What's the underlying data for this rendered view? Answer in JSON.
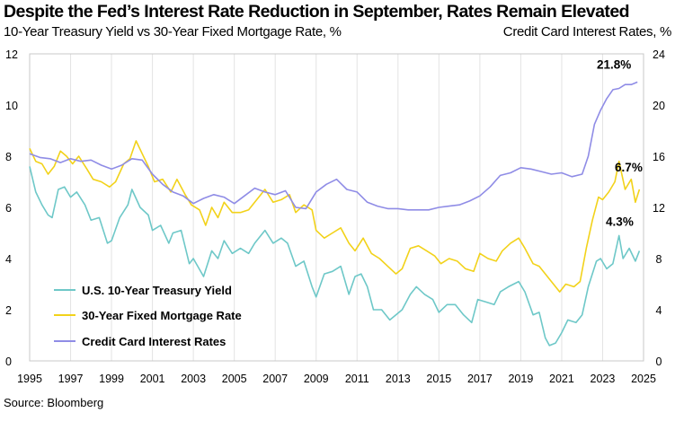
{
  "header": {
    "title": "Despite the Fed’s Interest Rate Reduction in September, Rates Remain Elevated",
    "subtitle_left": "10-Year Treasury Yield vs 30-Year Fixed Mortgage Rate, %",
    "subtitle_right": "Credit Card Interest Rates, %"
  },
  "footer": {
    "source": "Source: Bloomberg"
  },
  "chart_data": {
    "type": "line",
    "xlim": [
      1995,
      2025
    ],
    "ylim_left": [
      0,
      12
    ],
    "ylim_right": [
      0,
      24
    ],
    "x_ticks": [
      "1995",
      "1997",
      "1999",
      "2001",
      "2003",
      "2005",
      "2007",
      "2009",
      "2011",
      "2013",
      "2015",
      "2017",
      "2019",
      "2021",
      "2023",
      "2025"
    ],
    "y_ticks_left": [
      "0",
      "2",
      "4",
      "6",
      "8",
      "10",
      "12"
    ],
    "y_ticks_right": [
      "0",
      "4",
      "8",
      "12",
      "16",
      "20",
      "24"
    ],
    "grid": "vertical",
    "legend_position": "bottom-left",
    "colors": {
      "treasury": "#6ec8c8",
      "mortgage": "#f2d21a",
      "credit": "#8f8ce6"
    },
    "series": [
      {
        "name": "U.S. 10-Year Treasury Yield",
        "axis": "left",
        "color": "#6ec8c8",
        "end_label": "4.3%",
        "x": [
          1995.0,
          1995.3,
          1995.6,
          1995.9,
          1996.1,
          1996.4,
          1996.7,
          1997.0,
          1997.3,
          1997.7,
          1998.0,
          1998.4,
          1998.8,
          1999.0,
          1999.4,
          1999.8,
          2000.0,
          2000.4,
          2000.8,
          2001.0,
          2001.4,
          2001.8,
          2002.0,
          2002.4,
          2002.8,
          2003.0,
          2003.5,
          2003.9,
          2004.2,
          2004.5,
          2004.9,
          2005.3,
          2005.7,
          2006.0,
          2006.5,
          2006.9,
          2007.3,
          2007.6,
          2008.0,
          2008.4,
          2008.8,
          2009.0,
          2009.4,
          2009.8,
          2010.2,
          2010.6,
          2010.9,
          2011.2,
          2011.5,
          2011.8,
          2012.2,
          2012.6,
          2012.9,
          2013.2,
          2013.6,
          2013.9,
          2014.3,
          2014.7,
          2015.0,
          2015.4,
          2015.8,
          2016.2,
          2016.6,
          2016.9,
          2017.3,
          2017.7,
          2018.0,
          2018.4,
          2018.9,
          2019.2,
          2019.6,
          2019.9,
          2020.2,
          2020.4,
          2020.7,
          2021.0,
          2021.3,
          2021.7,
          2022.0,
          2022.3,
          2022.7,
          2022.9,
          2023.2,
          2023.5,
          2023.8,
          2024.0,
          2024.3,
          2024.6,
          2024.8
        ],
        "y": [
          7.6,
          6.6,
          6.1,
          5.7,
          5.6,
          6.7,
          6.8,
          6.4,
          6.6,
          6.1,
          5.5,
          5.6,
          4.6,
          4.7,
          5.6,
          6.1,
          6.7,
          6.0,
          5.7,
          5.1,
          5.3,
          4.6,
          5.0,
          5.1,
          3.8,
          4.0,
          3.3,
          4.3,
          4.0,
          4.7,
          4.2,
          4.4,
          4.2,
          4.6,
          5.1,
          4.6,
          4.8,
          4.6,
          3.7,
          3.9,
          2.9,
          2.5,
          3.4,
          3.5,
          3.7,
          2.6,
          3.3,
          3.4,
          2.9,
          2.0,
          2.0,
          1.6,
          1.8,
          2.0,
          2.6,
          2.9,
          2.6,
          2.4,
          1.9,
          2.2,
          2.2,
          1.8,
          1.5,
          2.4,
          2.3,
          2.2,
          2.7,
          2.9,
          3.1,
          2.7,
          1.8,
          1.9,
          0.9,
          0.6,
          0.7,
          1.1,
          1.6,
          1.5,
          1.8,
          2.9,
          3.9,
          4.0,
          3.6,
          3.8,
          4.9,
          4.0,
          4.4,
          3.9,
          4.3
        ]
      },
      {
        "name": "30-Year Fixed Mortgage Rate",
        "axis": "left",
        "color": "#f2d21a",
        "end_label": "6.7%",
        "x": [
          1995.0,
          1995.3,
          1995.6,
          1995.9,
          1996.2,
          1996.5,
          1996.8,
          1997.1,
          1997.4,
          1997.8,
          1998.1,
          1998.5,
          1998.9,
          1999.2,
          1999.6,
          1999.9,
          2000.2,
          2000.5,
          2000.8,
          2001.1,
          2001.5,
          2001.9,
          2002.2,
          2002.6,
          2002.9,
          2003.3,
          2003.6,
          2003.9,
          2004.2,
          2004.5,
          2004.9,
          2005.3,
          2005.7,
          2006.1,
          2006.5,
          2006.9,
          2007.3,
          2007.7,
          2008.0,
          2008.4,
          2008.8,
          2009.0,
          2009.4,
          2009.8,
          2010.2,
          2010.6,
          2010.9,
          2011.3,
          2011.7,
          2012.1,
          2012.5,
          2012.9,
          2013.2,
          2013.6,
          2014.0,
          2014.4,
          2014.8,
          2015.1,
          2015.5,
          2015.9,
          2016.3,
          2016.7,
          2017.0,
          2017.4,
          2017.8,
          2018.1,
          2018.5,
          2018.9,
          2019.2,
          2019.6,
          2019.9,
          2020.2,
          2020.6,
          2020.9,
          2021.2,
          2021.6,
          2021.9,
          2022.2,
          2022.5,
          2022.8,
          2023.0,
          2023.3,
          2023.6,
          2023.8,
          2024.1,
          2024.4,
          2024.6,
          2024.8
        ],
        "y": [
          8.3,
          7.8,
          7.7,
          7.3,
          7.6,
          8.2,
          8.0,
          7.7,
          8.0,
          7.5,
          7.1,
          7.0,
          6.8,
          7.0,
          7.7,
          7.9,
          8.6,
          8.1,
          7.6,
          7.0,
          7.1,
          6.6,
          7.1,
          6.5,
          6.1,
          5.9,
          5.3,
          6.0,
          5.6,
          6.2,
          5.8,
          5.8,
          5.9,
          6.3,
          6.7,
          6.2,
          6.3,
          6.5,
          5.8,
          6.1,
          5.9,
          5.1,
          4.8,
          5.0,
          5.2,
          4.6,
          4.3,
          4.8,
          4.2,
          4.0,
          3.7,
          3.4,
          3.6,
          4.4,
          4.5,
          4.3,
          4.1,
          3.8,
          4.0,
          3.9,
          3.6,
          3.5,
          4.2,
          4.0,
          3.9,
          4.3,
          4.6,
          4.8,
          4.4,
          3.8,
          3.7,
          3.4,
          3.0,
          2.7,
          3.0,
          2.9,
          3.1,
          4.4,
          5.5,
          6.4,
          6.3,
          6.6,
          7.0,
          7.8,
          6.7,
          7.1,
          6.2,
          6.7
        ]
      },
      {
        "name": "Credit Card Interest Rates",
        "axis": "right",
        "color": "#8f8ce6",
        "end_label": "21.8%",
        "x": [
          1995.0,
          1995.5,
          1996.0,
          1996.5,
          1997.0,
          1997.5,
          1998.0,
          1998.5,
          1999.0,
          1999.5,
          2000.0,
          2000.5,
          2001.0,
          2001.5,
          2002.0,
          2002.5,
          2003.0,
          2003.5,
          2004.0,
          2004.5,
          2005.0,
          2005.5,
          2006.0,
          2006.5,
          2007.0,
          2007.5,
          2008.0,
          2008.5,
          2009.0,
          2009.5,
          2010.0,
          2010.5,
          2011.0,
          2011.5,
          2012.0,
          2012.5,
          2013.0,
          2013.5,
          2014.0,
          2014.5,
          2015.0,
          2015.5,
          2016.0,
          2016.5,
          2017.0,
          2017.5,
          2018.0,
          2018.5,
          2019.0,
          2019.5,
          2020.0,
          2020.5,
          2021.0,
          2021.5,
          2022.0,
          2022.3,
          2022.6,
          2022.9,
          2023.2,
          2023.5,
          2023.8,
          2024.1,
          2024.4,
          2024.7
        ],
        "y": [
          16.2,
          15.9,
          15.8,
          15.5,
          15.8,
          15.6,
          15.7,
          15.3,
          15.0,
          15.3,
          15.8,
          15.7,
          14.6,
          13.8,
          13.2,
          12.9,
          12.3,
          12.7,
          13.0,
          12.8,
          12.3,
          12.9,
          13.5,
          13.2,
          13.0,
          13.3,
          12.0,
          11.9,
          13.2,
          13.8,
          14.2,
          13.4,
          13.2,
          12.4,
          12.1,
          11.9,
          11.9,
          11.8,
          11.8,
          11.8,
          12.0,
          12.1,
          12.2,
          12.5,
          12.9,
          13.6,
          14.5,
          14.7,
          15.1,
          15.0,
          14.8,
          14.6,
          14.7,
          14.4,
          14.6,
          16.0,
          18.5,
          19.6,
          20.5,
          21.2,
          21.3,
          21.6,
          21.6,
          21.8
        ]
      }
    ]
  }
}
